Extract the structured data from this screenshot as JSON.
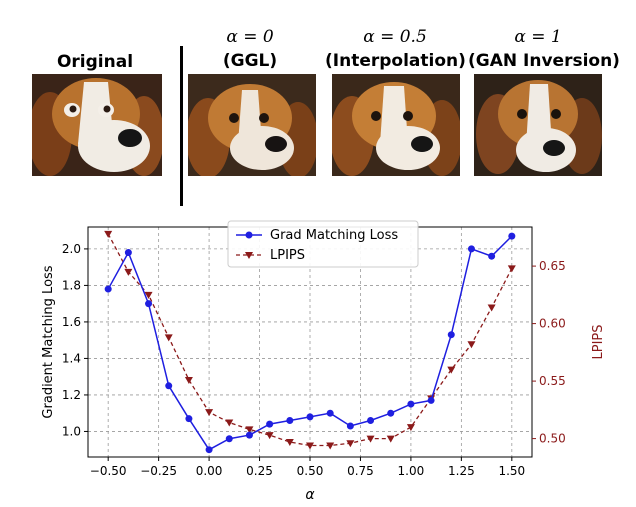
{
  "panels": [
    {
      "label": "Original",
      "alpha_line": ""
    },
    {
      "label": "(GGL)",
      "alpha_line": "α = 0"
    },
    {
      "label": "(Interpolation)",
      "alpha_line": "α = 0.5"
    },
    {
      "label": "(GAN Inversion)",
      "alpha_line": "α = 1"
    }
  ],
  "colors": {
    "grad": "#1f1fe0",
    "lpips": "#8b1a1a",
    "fur": "#b8722e",
    "white_fur": "#f1ece4"
  },
  "icons": [
    "beagle-photo-original",
    "beagle-photo-ggl",
    "beagle-photo-interpolation",
    "beagle-photo-gan-inversion"
  ],
  "chart_data": {
    "type": "line",
    "title": "",
    "xlabel": "α",
    "ylabel_left": "Gradient Matching Loss",
    "ylabel_right": "LPIPS",
    "x": [
      -0.5,
      -0.4,
      -0.3,
      -0.2,
      -0.1,
      0.0,
      0.1,
      0.2,
      0.3,
      0.4,
      0.5,
      0.6,
      0.7,
      0.8,
      0.9,
      1.0,
      1.1,
      1.2,
      1.3,
      1.4,
      1.5
    ],
    "xlim": [
      -0.6,
      1.6
    ],
    "ylim_left": [
      0.86,
      2.12
    ],
    "ylim_right": [
      0.484,
      0.684
    ],
    "xticks": [
      "−0.50",
      "−0.25",
      "0.00",
      "0.25",
      "0.50",
      "0.75",
      "1.00",
      "1.25",
      "1.50"
    ],
    "xtick_values": [
      -0.5,
      -0.25,
      0.0,
      0.25,
      0.5,
      0.75,
      1.0,
      1.25,
      1.5
    ],
    "yticks_left": [
      "1.0",
      "1.2",
      "1.4",
      "1.6",
      "1.8",
      "2.0"
    ],
    "ytick_values_left": [
      1.0,
      1.2,
      1.4,
      1.6,
      1.8,
      2.0
    ],
    "yticks_right": [
      "0.50",
      "0.55",
      "0.60",
      "0.65"
    ],
    "ytick_values_right": [
      0.5,
      0.55,
      0.6,
      0.65
    ],
    "grid": true,
    "legend_position": "top-center",
    "series": [
      {
        "name": "Grad Matching Loss",
        "axis": "left",
        "style": "solid",
        "marker": "circle",
        "values": [
          1.78,
          1.98,
          1.7,
          1.25,
          1.07,
          0.9,
          0.96,
          0.98,
          1.04,
          1.06,
          1.08,
          1.1,
          1.03,
          1.06,
          1.1,
          1.15,
          1.17,
          1.53,
          2.0,
          1.96,
          2.07
        ]
      },
      {
        "name": "LPIPS",
        "axis": "right",
        "style": "dashed",
        "marker": "triangle-down",
        "values": [
          0.678,
          0.645,
          0.625,
          0.588,
          0.551,
          0.523,
          0.514,
          0.508,
          0.503,
          0.497,
          0.494,
          0.494,
          0.496,
          0.5,
          0.5,
          0.51,
          0.535,
          0.56,
          0.582,
          0.614,
          0.648
        ]
      }
    ]
  }
}
